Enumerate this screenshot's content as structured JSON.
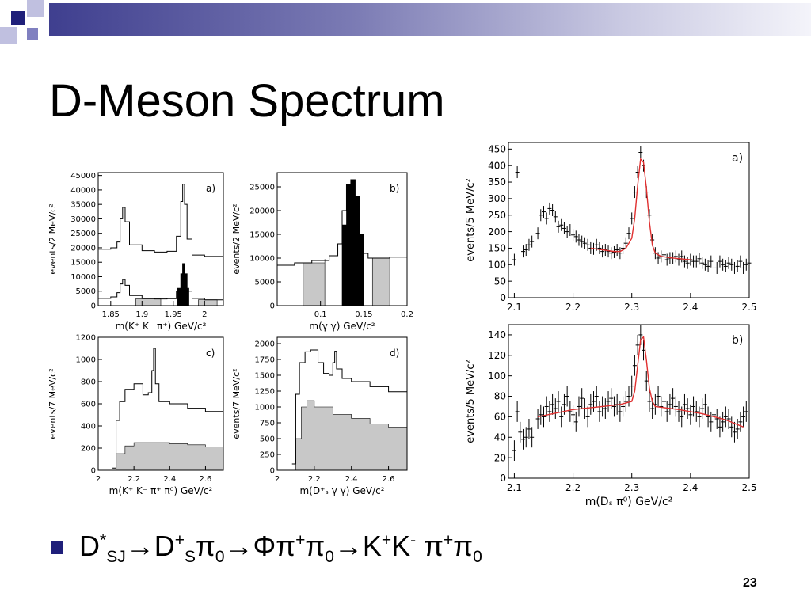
{
  "slide": {
    "title": "D-Meson Spectrum",
    "bullet": {
      "D": "D",
      "star": "*",
      "sj": "SJ",
      "arrow1": "→D",
      "plus1": "+",
      "s": "S",
      "pi1": "π",
      "zero1": "0",
      "arrow2": "→Φπ",
      "plus2": "+",
      "pi2": "π",
      "zero2": "0",
      "arrow3": "→K",
      "plus3": "+",
      "k2": "K",
      "minus": "-",
      "pi3": " π",
      "plus4": "+",
      "pi4": "π",
      "zero3": "0"
    },
    "page_number": "23",
    "colors": {
      "accent": "#2b2b84",
      "bar": "#3f3f8f",
      "fit": "#e03030",
      "fill": "#c8c8c8"
    }
  },
  "chart_data": [
    {
      "id": "left_a",
      "type": "line",
      "panel_label": "a)",
      "xlabel": "m(K⁺ K⁻ π⁺) GeV/c²",
      "ylabel": "events/2 MeV/c²",
      "xlim": [
        1.83,
        2.03
      ],
      "ylim": [
        0,
        46000
      ],
      "xticks": [
        1.85,
        1.9,
        1.95,
        2
      ],
      "xtick_labels": [
        "1.85",
        "1.9",
        "1.95",
        "2"
      ],
      "yticks": [
        0,
        5000,
        10000,
        15000,
        20000,
        25000,
        30000,
        35000,
        40000,
        45000
      ],
      "ytick_labels": [
        "0",
        "5000",
        "10000",
        "15000",
        "20000",
        "25000",
        "30000",
        "35000",
        "40000",
        "45000"
      ],
      "series": [
        {
          "style": "step",
          "x": [
            1.83,
            1.85,
            1.86,
            1.865,
            1.869,
            1.873,
            1.88,
            1.9,
            1.92,
            1.94,
            1.955,
            1.962,
            1.965,
            1.968,
            1.972,
            1.98,
            2.0,
            2.03
          ],
          "y": [
            19500,
            20000,
            22000,
            30000,
            34000,
            29000,
            21000,
            19000,
            18500,
            18800,
            24000,
            36000,
            42000,
            35000,
            23000,
            17500,
            17000,
            16500
          ]
        },
        {
          "style": "step",
          "x": [
            1.83,
            1.85,
            1.86,
            1.865,
            1.869,
            1.873,
            1.88,
            1.9,
            1.92,
            1.94,
            1.955,
            1.962,
            1.965,
            1.968,
            1.972,
            1.98,
            2.0,
            2.03
          ],
          "y": [
            2500,
            3000,
            4500,
            7500,
            9000,
            7000,
            3500,
            2500,
            2300,
            2400,
            5000,
            11000,
            14500,
            11000,
            5000,
            2500,
            2000,
            1800
          ]
        },
        {
          "style": "filled",
          "fill": "#000000",
          "x": [
            1.957,
            1.962,
            1.965,
            1.968,
            1.972,
            1.975
          ],
          "y": [
            6000,
            11000,
            14500,
            11000,
            6000,
            3000
          ]
        },
        {
          "style": "filled",
          "fill": "#c8c8c8",
          "x": [
            1.89,
            1.93
          ],
          "y": [
            2300,
            2300
          ]
        },
        {
          "style": "filled",
          "fill": "#c8c8c8",
          "x": [
            1.99,
            2.02
          ],
          "y": [
            2000,
            1900
          ]
        }
      ]
    },
    {
      "id": "left_b",
      "type": "bar",
      "panel_label": "b)",
      "xlabel": "m(γ γ) GeV/c²",
      "ylabel": "events/2 MeV/c²",
      "xlim": [
        0.05,
        0.2
      ],
      "ylim": [
        0,
        28000
      ],
      "xticks": [
        0.1,
        0.15,
        0.2
      ],
      "xtick_labels": [
        "0.1",
        "0.15",
        "0.2"
      ],
      "yticks": [
        0,
        5000,
        10000,
        15000,
        20000,
        25000
      ],
      "ytick_labels": [
        "0",
        "5000",
        "10000",
        "15000",
        "20000",
        "25000"
      ],
      "series": [
        {
          "style": "step",
          "x": [
            0.05,
            0.07,
            0.09,
            0.11,
            0.12,
            0.125,
            0.13,
            0.135,
            0.14,
            0.145,
            0.15,
            0.155,
            0.16,
            0.18,
            0.2
          ],
          "y": [
            8500,
            9000,
            9500,
            10500,
            13000,
            20000,
            25500,
            26500,
            23000,
            15000,
            11000,
            10000,
            10000,
            10200,
            10400
          ]
        },
        {
          "style": "filled",
          "fill": "#000000",
          "x": [
            0.125,
            0.13,
            0.135,
            0.14,
            0.145,
            0.15
          ],
          "y": [
            17000,
            25500,
            26500,
            23000,
            15000,
            8000
          ]
        },
        {
          "style": "filled",
          "fill": "#c8c8c8",
          "x": [
            0.08,
            0.105
          ],
          "y": [
            9000,
            9800
          ]
        },
        {
          "style": "filled",
          "fill": "#c8c8c8",
          "x": [
            0.16,
            0.18
          ],
          "y": [
            10000,
            10200
          ]
        }
      ]
    },
    {
      "id": "left_c",
      "type": "line",
      "panel_label": "c)",
      "xlabel": "m(K⁺ K⁻ π⁺ π⁰) GeV/c²",
      "ylabel": "events/7 MeV/c²",
      "xlim": [
        2.0,
        2.7
      ],
      "ylim": [
        0,
        1200
      ],
      "xticks": [
        2,
        2.2,
        2.4,
        2.6
      ],
      "xtick_labels": [
        "2",
        "2.2",
        "2.4",
        "2.6"
      ],
      "yticks": [
        0,
        200,
        400,
        600,
        800,
        1000,
        1200
      ],
      "ytick_labels": [
        "0",
        "200",
        "400",
        "600",
        "800",
        "1000",
        "1200"
      ],
      "series": [
        {
          "style": "step",
          "x": [
            2.08,
            2.1,
            2.12,
            2.15,
            2.2,
            2.25,
            2.28,
            2.3,
            2.31,
            2.32,
            2.34,
            2.4,
            2.5,
            2.6,
            2.7
          ],
          "y": [
            20,
            450,
            620,
            730,
            780,
            680,
            700,
            900,
            1100,
            780,
            620,
            600,
            560,
            530,
            510
          ]
        },
        {
          "style": "filled",
          "fill": "#c8c8c8",
          "x": [
            2.06,
            2.1,
            2.15,
            2.2,
            2.3,
            2.4,
            2.5,
            2.6,
            2.7
          ],
          "y": [
            0,
            150,
            220,
            250,
            250,
            240,
            230,
            210,
            190
          ]
        }
      ]
    },
    {
      "id": "left_d",
      "type": "line",
      "panel_label": "d)",
      "xlabel": "m(D⁺ₛ γ γ) GeV/c²",
      "ylabel": "events/7 MeV/c²",
      "xlim": [
        2.0,
        2.7
      ],
      "ylim": [
        0,
        2100
      ],
      "xticks": [
        2,
        2.2,
        2.4,
        2.6
      ],
      "xtick_labels": [
        "2",
        "2.2",
        "2.4",
        "2.6"
      ],
      "yticks": [
        0,
        250,
        500,
        750,
        1000,
        1250,
        1500,
        1750,
        2000
      ],
      "ytick_labels": [
        "0",
        "250",
        "500",
        "750",
        "1000",
        "1250",
        "1500",
        "1750",
        "2000"
      ],
      "series": [
        {
          "style": "step",
          "x": [
            2.08,
            2.1,
            2.12,
            2.15,
            2.18,
            2.22,
            2.25,
            2.28,
            2.3,
            2.31,
            2.32,
            2.35,
            2.4,
            2.5,
            2.6,
            2.7
          ],
          "y": [
            100,
            1200,
            1700,
            1870,
            1900,
            1700,
            1530,
            1500,
            1700,
            1880,
            1600,
            1450,
            1400,
            1320,
            1240,
            1200
          ]
        },
        {
          "style": "filled",
          "fill": "#c8c8c8",
          "x": [
            2.06,
            2.1,
            2.13,
            2.16,
            2.2,
            2.3,
            2.4,
            2.5,
            2.6,
            2.7
          ],
          "y": [
            0,
            500,
            1000,
            1100,
            1000,
            880,
            820,
            730,
            680,
            580
          ]
        }
      ]
    },
    {
      "id": "right_a",
      "type": "scatter",
      "panel_label": "a)",
      "xlabel": "",
      "ylabel": "events/5 MeV/c²",
      "xlim": [
        2.09,
        2.5
      ],
      "ylim": [
        0,
        470
      ],
      "xticks": [
        2.1,
        2.2,
        2.3,
        2.4,
        2.5
      ],
      "xtick_labels": [
        "2.1",
        "2.2",
        "2.3",
        "2.4",
        "2.5"
      ],
      "yticks": [
        0,
        50,
        100,
        150,
        200,
        250,
        300,
        350,
        400,
        450
      ],
      "ytick_labels": [
        "0",
        "50",
        "100",
        "150",
        "200",
        "250",
        "300",
        "350",
        "400",
        "450"
      ],
      "points": {
        "x": [
          2.1,
          2.105,
          2.115,
          2.12,
          2.125,
          2.13,
          2.14,
          2.145,
          2.15,
          2.155,
          2.16,
          2.165,
          2.17,
          2.175,
          2.18,
          2.185,
          2.19,
          2.195,
          2.2,
          2.205,
          2.21,
          2.215,
          2.22,
          2.225,
          2.23,
          2.235,
          2.24,
          2.245,
          2.25,
          2.255,
          2.26,
          2.265,
          2.27,
          2.275,
          2.28,
          2.285,
          2.29,
          2.295,
          2.3,
          2.305,
          2.31,
          2.315,
          2.32,
          2.325,
          2.33,
          2.335,
          2.34,
          2.345,
          2.35,
          2.355,
          2.36,
          2.365,
          2.37,
          2.375,
          2.38,
          2.385,
          2.39,
          2.395,
          2.4,
          2.405,
          2.41,
          2.415,
          2.42,
          2.425,
          2.43,
          2.435,
          2.44,
          2.445,
          2.45,
          2.455,
          2.46,
          2.465,
          2.47,
          2.475,
          2.48,
          2.485,
          2.49,
          2.495,
          2.5
        ],
        "y": [
          115,
          380,
          140,
          145,
          160,
          170,
          195,
          250,
          260,
          240,
          270,
          265,
          245,
          215,
          220,
          210,
          200,
          205,
          190,
          185,
          175,
          170,
          165,
          160,
          150,
          148,
          160,
          150,
          140,
          145,
          140,
          135,
          138,
          145,
          135,
          150,
          165,
          195,
          240,
          320,
          380,
          440,
          400,
          320,
          250,
          175,
          135,
          120,
          125,
          130,
          115,
          120,
          120,
          125,
          115,
          125,
          110,
          105,
          115,
          110,
          110,
          118,
          105,
          100,
          95,
          110,
          90,
          90,
          110,
          100,
          95,
          105,
          100,
          90,
          95,
          110,
          90,
          100,
          105
        ],
        "err": 18
      },
      "fit": {
        "x": [
          2.23,
          2.25,
          2.27,
          2.28,
          2.29,
          2.3,
          2.305,
          2.31,
          2.315,
          2.32,
          2.325,
          2.33,
          2.335,
          2.34,
          2.35,
          2.37,
          2.4
        ],
        "y": [
          150,
          145,
          140,
          140,
          150,
          180,
          240,
          340,
          420,
          410,
          330,
          230,
          160,
          135,
          125,
          120,
          115
        ]
      }
    },
    {
      "id": "right_b",
      "type": "scatter",
      "panel_label": "b)",
      "xlabel": "m(Dₛ π⁰) GeV/c²",
      "ylabel": "events/5 MeV/c²",
      "xlim": [
        2.09,
        2.5
      ],
      "ylim": [
        0,
        150
      ],
      "xticks": [
        2.1,
        2.2,
        2.3,
        2.4,
        2.5
      ],
      "xtick_labels": [
        "2.1",
        "2.2",
        "2.3",
        "2.4",
        "2.5"
      ],
      "yticks": [
        0,
        20,
        40,
        60,
        80,
        100,
        120,
        140
      ],
      "ytick_labels": [
        "0",
        "20",
        "40",
        "60",
        "80",
        "100",
        "120",
        "140"
      ],
      "points": {
        "x": [
          2.1,
          2.105,
          2.11,
          2.115,
          2.12,
          2.125,
          2.13,
          2.14,
          2.145,
          2.15,
          2.155,
          2.16,
          2.165,
          2.17,
          2.175,
          2.18,
          2.185,
          2.19,
          2.195,
          2.2,
          2.205,
          2.21,
          2.215,
          2.22,
          2.225,
          2.23,
          2.235,
          2.24,
          2.245,
          2.25,
          2.255,
          2.26,
          2.265,
          2.27,
          2.275,
          2.28,
          2.285,
          2.29,
          2.295,
          2.3,
          2.305,
          2.31,
          2.315,
          2.32,
          2.325,
          2.33,
          2.335,
          2.34,
          2.345,
          2.35,
          2.355,
          2.36,
          2.365,
          2.37,
          2.375,
          2.38,
          2.385,
          2.39,
          2.395,
          2.4,
          2.405,
          2.41,
          2.415,
          2.42,
          2.425,
          2.43,
          2.435,
          2.44,
          2.445,
          2.45,
          2.455,
          2.46,
          2.465,
          2.47,
          2.475,
          2.48,
          2.485,
          2.49,
          2.495
        ],
        "y": [
          27,
          65,
          45,
          38,
          40,
          48,
          40,
          58,
          62,
          60,
          70,
          65,
          72,
          68,
          75,
          60,
          72,
          80,
          65,
          62,
          55,
          70,
          78,
          68,
          60,
          72,
          75,
          80,
          65,
          70,
          68,
          75,
          78,
          70,
          72,
          65,
          70,
          75,
          80,
          90,
          110,
          130,
          140,
          125,
          95,
          75,
          68,
          72,
          80,
          70,
          75,
          65,
          72,
          78,
          70,
          65,
          60,
          72,
          68,
          62,
          70,
          65,
          60,
          68,
          72,
          60,
          55,
          62,
          58,
          50,
          55,
          60,
          58,
          50,
          45,
          48,
          55,
          60,
          65
        ],
        "err": 10
      },
      "fit": {
        "x": [
          2.14,
          2.2,
          2.25,
          2.28,
          2.3,
          2.305,
          2.31,
          2.315,
          2.32,
          2.325,
          2.33,
          2.335,
          2.34,
          2.38,
          2.42,
          2.46,
          2.49
        ],
        "y": [
          60,
          67,
          70,
          72,
          75,
          85,
          110,
          135,
          138,
          115,
          88,
          75,
          70,
          67,
          63,
          57,
          50
        ]
      }
    }
  ]
}
